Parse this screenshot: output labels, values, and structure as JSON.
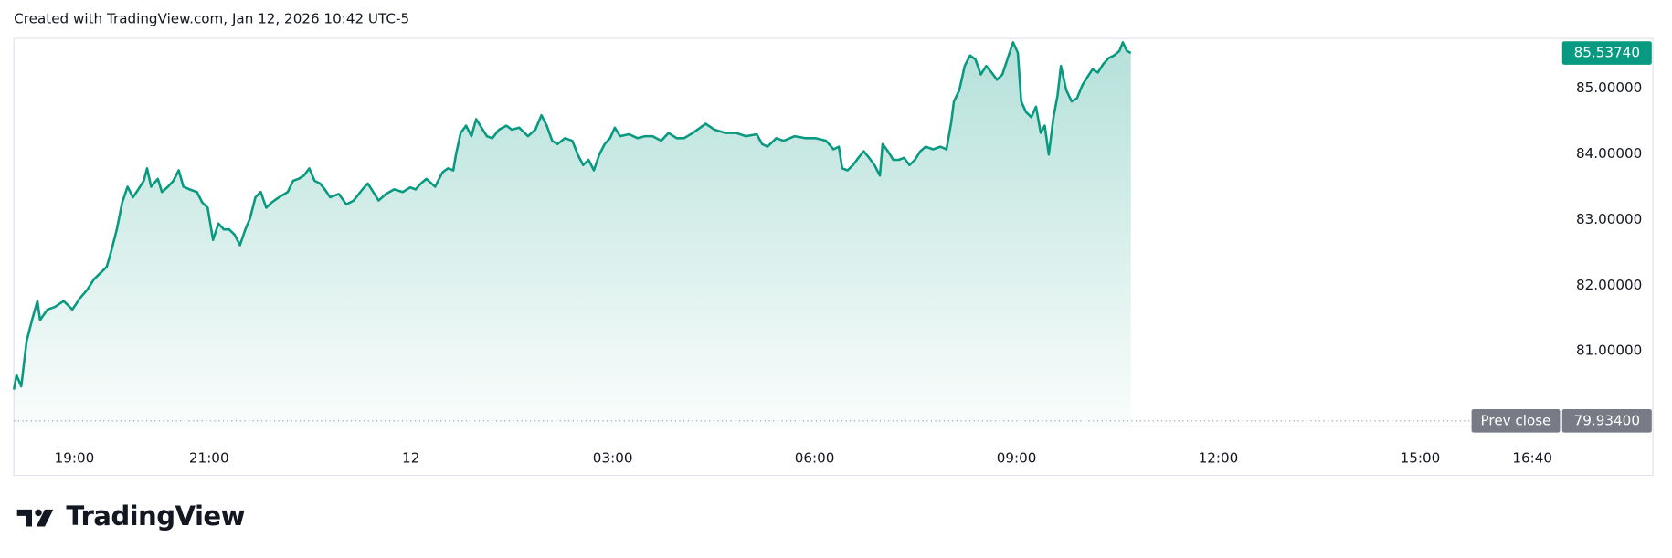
{
  "header": "Created with TradingView.com, Jan 12, 2026 10:42 UTC-5",
  "brand": "TradingView",
  "chart_data": {
    "type": "area",
    "color": "#089981",
    "x": [
      18.1,
      18.14,
      18.21,
      18.29,
      18.37,
      18.45,
      18.49,
      18.6,
      18.71,
      18.84,
      18.97,
      19.08,
      19.19,
      19.29,
      19.4,
      19.48,
      19.55,
      19.63,
      19.71,
      19.79,
      19.87,
      19.95,
      20.03,
      20.08,
      20.14,
      20.24,
      20.3,
      20.39,
      20.47,
      20.55,
      20.62,
      20.71,
      20.82,
      20.9,
      20.98,
      21.06,
      21.14,
      21.22,
      21.3,
      21.38,
      21.46,
      21.54,
      21.61,
      21.69,
      21.77,
      21.85,
      21.93,
      22.04,
      22.17,
      22.25,
      22.33,
      22.41,
      22.49,
      22.57,
      22.65,
      22.72,
      22.8,
      22.93,
      23.04,
      23.15,
      23.28,
      23.36,
      23.44,
      23.52,
      23.63,
      23.75,
      23.88,
      23.99,
      24.07,
      24.15,
      24.23,
      24.36,
      24.47,
      24.55,
      24.63,
      24.67,
      24.74,
      24.82,
      24.9,
      24.97,
      25.05,
      25.13,
      25.21,
      25.31,
      25.42,
      25.5,
      25.61,
      25.74,
      25.85,
      25.94,
      26.02,
      26.1,
      26.18,
      26.29,
      26.4,
      26.48,
      26.56,
      26.64,
      26.72,
      26.8,
      26.88,
      26.96,
      27.03,
      27.11,
      27.24,
      27.37,
      27.48,
      27.59,
      27.72,
      27.83,
      27.95,
      28.06,
      28.19,
      28.3,
      28.38,
      28.51,
      28.67,
      28.83,
      28.98,
      29.14,
      29.22,
      29.3,
      29.43,
      29.54,
      29.7,
      29.86,
      30.01,
      30.17,
      30.28,
      30.36,
      30.41,
      30.49,
      30.57,
      30.65,
      30.73,
      30.81,
      30.89,
      30.97,
      31.01,
      31.09,
      31.17,
      31.25,
      31.33,
      31.41,
      31.49,
      31.57,
      31.65,
      31.76,
      31.87,
      31.96,
      32.03,
      32.07,
      32.15,
      32.23,
      32.31,
      32.39,
      32.47,
      32.55,
      32.63,
      32.71,
      32.79,
      32.87,
      32.95,
      33.02,
      33.07,
      33.14,
      33.22,
      33.29,
      33.36,
      33.42,
      33.48,
      33.55,
      33.61,
      33.66,
      33.74,
      33.82,
      33.9,
      33.98,
      34.06,
      34.13,
      34.21,
      34.29,
      34.37,
      34.45,
      34.53,
      34.58,
      34.64,
      34.7
    ],
    "values": [
      80.41,
      80.63,
      80.46,
      81.15,
      81.47,
      81.76,
      81.47,
      81.63,
      81.67,
      81.76,
      81.63,
      81.8,
      81.93,
      82.09,
      82.2,
      82.28,
      82.53,
      82.85,
      83.26,
      83.5,
      83.34,
      83.46,
      83.59,
      83.78,
      83.5,
      83.62,
      83.42,
      83.5,
      83.59,
      83.75,
      83.5,
      83.46,
      83.42,
      83.26,
      83.18,
      82.69,
      82.94,
      82.85,
      82.85,
      82.77,
      82.61,
      82.85,
      83.02,
      83.34,
      83.42,
      83.18,
      83.26,
      83.34,
      83.42,
      83.59,
      83.62,
      83.67,
      83.78,
      83.59,
      83.55,
      83.46,
      83.34,
      83.39,
      83.23,
      83.29,
      83.46,
      83.55,
      83.42,
      83.29,
      83.39,
      83.46,
      83.42,
      83.49,
      83.46,
      83.55,
      83.62,
      83.5,
      83.72,
      83.78,
      83.75,
      83.99,
      84.32,
      84.43,
      84.27,
      84.53,
      84.4,
      84.27,
      84.24,
      84.37,
      84.43,
      84.37,
      84.4,
      84.27,
      84.37,
      84.59,
      84.43,
      84.2,
      84.15,
      84.24,
      84.2,
      83.99,
      83.83,
      83.91,
      83.75,
      83.99,
      84.15,
      84.24,
      84.4,
      84.27,
      84.3,
      84.24,
      84.27,
      84.27,
      84.2,
      84.32,
      84.24,
      84.24,
      84.32,
      84.4,
      84.46,
      84.37,
      84.32,
      84.32,
      84.27,
      84.3,
      84.15,
      84.11,
      84.24,
      84.2,
      84.27,
      84.24,
      84.24,
      84.2,
      84.07,
      84.11,
      83.78,
      83.75,
      83.83,
      83.94,
      84.04,
      83.94,
      83.83,
      83.67,
      84.15,
      84.04,
      83.91,
      83.91,
      83.94,
      83.83,
      83.91,
      84.04,
      84.11,
      84.07,
      84.11,
      84.07,
      84.48,
      84.8,
      84.97,
      85.34,
      85.5,
      85.44,
      85.21,
      85.34,
      85.24,
      85.13,
      85.21,
      85.46,
      85.7,
      85.54,
      84.8,
      84.64,
      84.56,
      84.72,
      84.32,
      84.43,
      83.99,
      84.56,
      84.89,
      85.34,
      84.97,
      84.8,
      84.85,
      85.05,
      85.18,
      85.29,
      85.24,
      85.37,
      85.46,
      85.5,
      85.57,
      85.7,
      85.57,
      85.5374
    ],
    "last_label": "85.53740",
    "prev_close": {
      "name": "Prev close",
      "value": 79.934,
      "label": "79.93400"
    },
    "xlim": [
      18.1,
      41.03
    ],
    "xticks": [
      {
        "value": 19,
        "label": "19:00"
      },
      {
        "value": 21,
        "label": "21:00"
      },
      {
        "value": 24,
        "label": "12"
      },
      {
        "value": 27,
        "label": "03:00"
      },
      {
        "value": 30,
        "label": "06:00"
      },
      {
        "value": 33,
        "label": "09:00"
      },
      {
        "value": 36,
        "label": "12:00"
      },
      {
        "value": 39,
        "label": "15:00"
      },
      {
        "value": 40.667,
        "label": "16:40"
      }
    ],
    "ylim": [
      79.85,
      85.76
    ],
    "yticks": [
      {
        "value": 81,
        "label": "81.00000"
      },
      {
        "value": 82,
        "label": "82.00000"
      },
      {
        "value": 83,
        "label": "83.00000"
      },
      {
        "value": 84,
        "label": "84.00000"
      },
      {
        "value": 85,
        "label": "85.00000"
      }
    ],
    "grid": false
  }
}
